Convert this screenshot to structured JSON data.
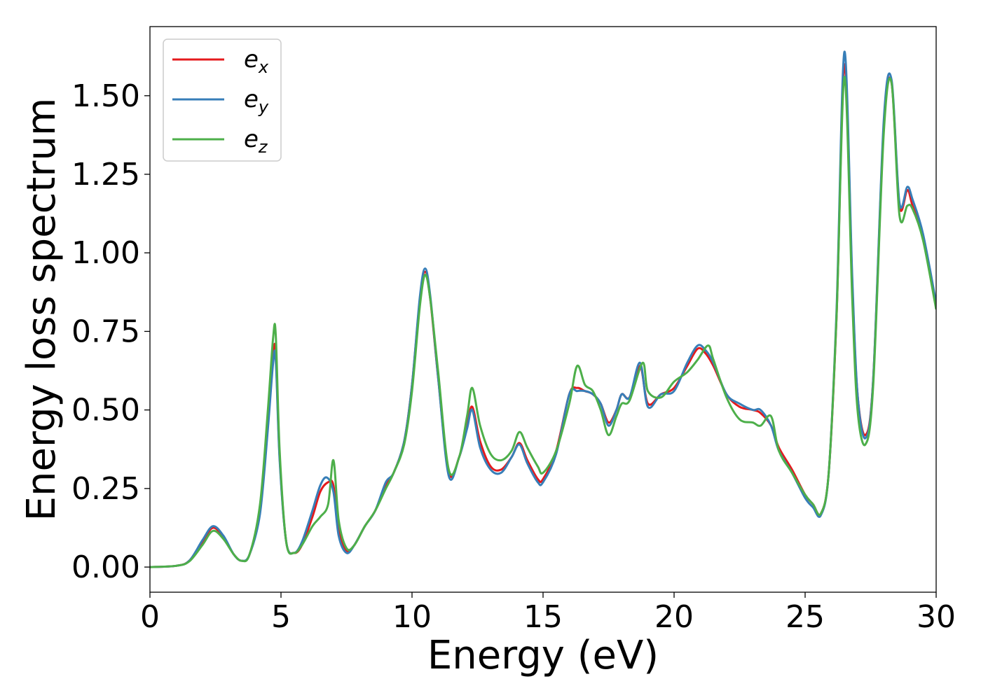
{
  "chart_data": {
    "type": "line",
    "xlabel": "Energy (eV)",
    "ylabel": "Energy loss spectrum",
    "xlim": [
      0,
      30
    ],
    "ylim": [
      -0.08,
      1.72
    ],
    "xticks": [
      "0",
      "5",
      "10",
      "15",
      "20",
      "25",
      "30"
    ],
    "yticks": [
      "0.00",
      "0.25",
      "0.50",
      "0.75",
      "1.00",
      "1.25",
      "1.50"
    ],
    "grid": false,
    "legend_position": "top-left",
    "series": [
      {
        "name": "e_x",
        "label_base": "e",
        "label_sub": "x",
        "color": "#e41a1c",
        "x": [
          0,
          1,
          1.5,
          2,
          2.4,
          2.8,
          3.2,
          3.5,
          3.8,
          4.2,
          4.5,
          4.7,
          4.8,
          4.95,
          5.2,
          5.5,
          5.8,
          6.2,
          6.5,
          6.8,
          7.0,
          7.2,
          7.5,
          7.8,
          8.2,
          8.6,
          9.0,
          9.3,
          9.7,
          10.0,
          10.3,
          10.5,
          10.7,
          11.0,
          11.4,
          11.8,
          12.1,
          12.3,
          12.6,
          13.0,
          13.4,
          13.8,
          14.1,
          14.4,
          14.8,
          15.0,
          15.5,
          16.0,
          16.3,
          16.6,
          16.9,
          17.2,
          17.5,
          17.8,
          18.0,
          18.3,
          18.7,
          19.0,
          19.5,
          20.0,
          20.5,
          20.9,
          21.2,
          21.5,
          22.0,
          22.5,
          23.0,
          23.3,
          23.7,
          24.0,
          24.5,
          25.0,
          25.3,
          25.6,
          25.9,
          26.2,
          26.5,
          26.8,
          27.0,
          27.3,
          27.6,
          28.0,
          28.3,
          28.6,
          28.9,
          29.1,
          29.5,
          30.0
        ],
        "y": [
          0.0,
          0.004,
          0.02,
          0.08,
          0.125,
          0.095,
          0.04,
          0.02,
          0.04,
          0.18,
          0.45,
          0.67,
          0.68,
          0.35,
          0.08,
          0.045,
          0.07,
          0.16,
          0.24,
          0.27,
          0.26,
          0.12,
          0.05,
          0.07,
          0.13,
          0.18,
          0.26,
          0.3,
          0.4,
          0.58,
          0.85,
          0.94,
          0.85,
          0.6,
          0.3,
          0.35,
          0.45,
          0.51,
          0.4,
          0.32,
          0.31,
          0.35,
          0.395,
          0.34,
          0.28,
          0.28,
          0.37,
          0.55,
          0.57,
          0.56,
          0.55,
          0.52,
          0.46,
          0.5,
          0.55,
          0.54,
          0.64,
          0.52,
          0.55,
          0.57,
          0.64,
          0.695,
          0.68,
          0.64,
          0.55,
          0.51,
          0.5,
          0.49,
          0.45,
          0.38,
          0.31,
          0.23,
          0.2,
          0.17,
          0.3,
          0.8,
          1.6,
          0.9,
          0.55,
          0.42,
          0.6,
          1.4,
          1.54,
          1.15,
          1.2,
          1.15,
          1.05,
          0.83
        ]
      },
      {
        "name": "e_y",
        "label_base": "e",
        "label_sub": "y",
        "color": "#377eb8",
        "x": [
          0,
          1,
          1.5,
          2,
          2.4,
          2.8,
          3.2,
          3.5,
          3.8,
          4.2,
          4.5,
          4.7,
          4.8,
          4.95,
          5.2,
          5.5,
          5.8,
          6.2,
          6.5,
          6.75,
          7.0,
          7.2,
          7.5,
          7.8,
          8.2,
          8.6,
          9.0,
          9.3,
          9.7,
          10.0,
          10.3,
          10.5,
          10.7,
          11.0,
          11.4,
          11.8,
          12.1,
          12.3,
          12.6,
          13.0,
          13.4,
          13.8,
          14.1,
          14.4,
          14.8,
          15.0,
          15.5,
          16.0,
          16.3,
          16.6,
          16.9,
          17.2,
          17.5,
          17.8,
          18.0,
          18.3,
          18.7,
          19.0,
          19.5,
          20.0,
          20.5,
          20.9,
          21.2,
          21.5,
          22.0,
          22.5,
          23.0,
          23.3,
          23.7,
          24.0,
          24.5,
          25.0,
          25.3,
          25.6,
          25.9,
          26.2,
          26.5,
          26.8,
          27.0,
          27.3,
          27.6,
          28.0,
          28.3,
          28.6,
          28.9,
          29.1,
          29.5,
          30.0
        ],
        "y": [
          0.0,
          0.004,
          0.02,
          0.085,
          0.13,
          0.1,
          0.04,
          0.02,
          0.04,
          0.17,
          0.44,
          0.65,
          0.66,
          0.34,
          0.08,
          0.045,
          0.08,
          0.18,
          0.26,
          0.285,
          0.24,
          0.1,
          0.045,
          0.07,
          0.13,
          0.18,
          0.27,
          0.3,
          0.4,
          0.58,
          0.86,
          0.95,
          0.86,
          0.6,
          0.29,
          0.35,
          0.44,
          0.5,
          0.38,
          0.31,
          0.3,
          0.35,
          0.39,
          0.33,
          0.27,
          0.27,
          0.36,
          0.55,
          0.56,
          0.56,
          0.55,
          0.52,
          0.45,
          0.5,
          0.55,
          0.54,
          0.65,
          0.51,
          0.55,
          0.56,
          0.65,
          0.705,
          0.69,
          0.65,
          0.55,
          0.52,
          0.5,
          0.5,
          0.45,
          0.37,
          0.3,
          0.22,
          0.19,
          0.165,
          0.3,
          0.82,
          1.64,
          0.92,
          0.55,
          0.41,
          0.6,
          1.42,
          1.55,
          1.16,
          1.21,
          1.17,
          1.06,
          0.84
        ]
      },
      {
        "name": "e_z",
        "label_base": "e",
        "label_sub": "z",
        "color": "#4daf4a",
        "x": [
          0,
          1,
          1.5,
          2,
          2.4,
          2.8,
          3.2,
          3.5,
          3.8,
          4.2,
          4.5,
          4.7,
          4.8,
          4.95,
          5.2,
          5.5,
          5.8,
          6.2,
          6.5,
          6.8,
          7.0,
          7.2,
          7.5,
          7.8,
          8.2,
          8.6,
          9.0,
          9.3,
          9.7,
          10.0,
          10.3,
          10.5,
          10.7,
          11.0,
          11.4,
          11.8,
          12.1,
          12.3,
          12.6,
          13.0,
          13.4,
          13.8,
          14.1,
          14.4,
          14.8,
          15.0,
          15.5,
          16.0,
          16.3,
          16.6,
          16.9,
          17.2,
          17.5,
          17.8,
          18.0,
          18.3,
          18.8,
          19.0,
          19.5,
          20.0,
          20.5,
          20.9,
          21.3,
          21.5,
          22.0,
          22.5,
          23.0,
          23.3,
          23.7,
          24.0,
          24.5,
          25.0,
          25.3,
          25.6,
          25.9,
          26.2,
          26.5,
          26.8,
          27.0,
          27.3,
          27.6,
          28.0,
          28.3,
          28.6,
          28.9,
          29.1,
          29.5,
          30.0
        ],
        "y": [
          0.0,
          0.004,
          0.018,
          0.07,
          0.115,
          0.09,
          0.04,
          0.02,
          0.04,
          0.2,
          0.5,
          0.73,
          0.74,
          0.37,
          0.08,
          0.045,
          0.07,
          0.13,
          0.16,
          0.2,
          0.34,
          0.15,
          0.06,
          0.07,
          0.13,
          0.18,
          0.25,
          0.3,
          0.39,
          0.56,
          0.83,
          0.93,
          0.85,
          0.62,
          0.31,
          0.35,
          0.48,
          0.57,
          0.45,
          0.36,
          0.34,
          0.37,
          0.43,
          0.38,
          0.32,
          0.3,
          0.37,
          0.52,
          0.64,
          0.58,
          0.56,
          0.5,
          0.42,
          0.48,
          0.52,
          0.53,
          0.65,
          0.56,
          0.54,
          0.59,
          0.62,
          0.66,
          0.705,
          0.66,
          0.54,
          0.47,
          0.46,
          0.45,
          0.48,
          0.37,
          0.3,
          0.23,
          0.2,
          0.17,
          0.3,
          0.8,
          1.56,
          0.85,
          0.5,
          0.39,
          0.58,
          1.38,
          1.54,
          1.12,
          1.15,
          1.14,
          1.04,
          0.82
        ]
      }
    ]
  }
}
